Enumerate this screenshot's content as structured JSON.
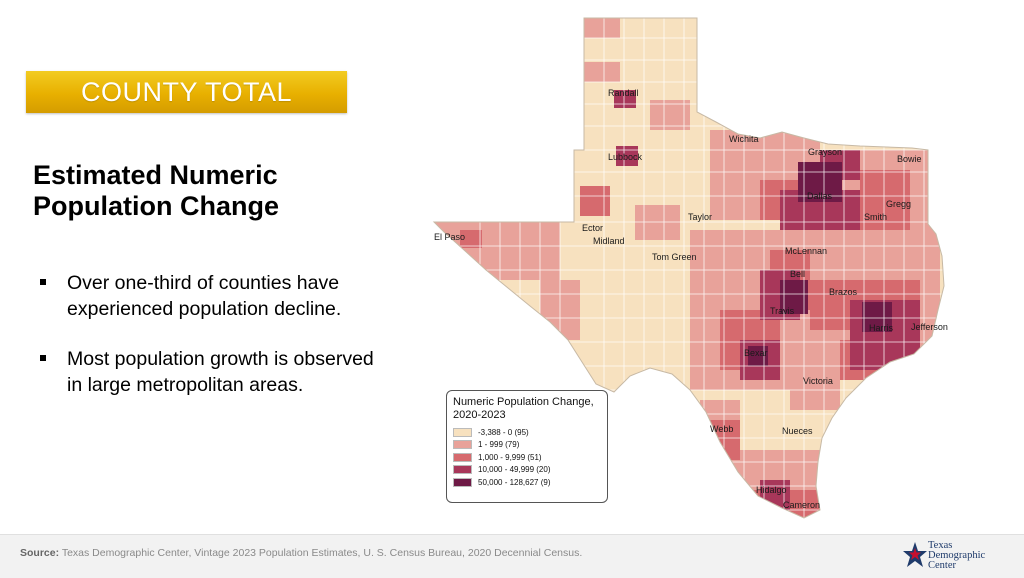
{
  "banner": {
    "text": "COUNTY TOTAL"
  },
  "title": {
    "line1": "Estimated Numeric",
    "line2": "Population Change"
  },
  "bullets": [
    "Over one-third of counties have experienced population decline.",
    "Most population growth is observed in large metropolitan areas."
  ],
  "map": {
    "county_labels": [
      "Randall",
      "Lubbock",
      "Wichita",
      "Grayson",
      "Bowie",
      "Dallas",
      "Gregg",
      "Smith",
      "El Paso",
      "Ector",
      "Midland",
      "Taylor",
      "Tom Green",
      "McLennan",
      "Bell",
      "Brazos",
      "Travis",
      "Harris",
      "Jefferson",
      "Bexar",
      "Victoria",
      "Webb",
      "Nueces",
      "Hidalgo",
      "Cameron"
    ],
    "colors": {
      "class1": "#f7e1bf",
      "class2": "#e8a29a",
      "class3": "#d66a6e",
      "class4": "#a8375a",
      "class5": "#6e1a46"
    }
  },
  "legend": {
    "title_line1": "Numeric Population Change,",
    "title_line2": "2020-2023",
    "items": [
      "-3,388 - 0 (95)",
      "1 - 999 (79)",
      "1,000 - 9,999 (51)",
      "10,000 - 49,999 (20)",
      "50,000 - 128,627 (9)"
    ]
  },
  "footer": {
    "source_label": "Source:",
    "source_text": " Texas Demographic Center, Vintage 2023 Population Estimates, U. S. Census Bureau, 2020 Decennial Census.",
    "logo_line1": "Texas",
    "logo_line2": "Demographic",
    "logo_line3": "Center"
  }
}
